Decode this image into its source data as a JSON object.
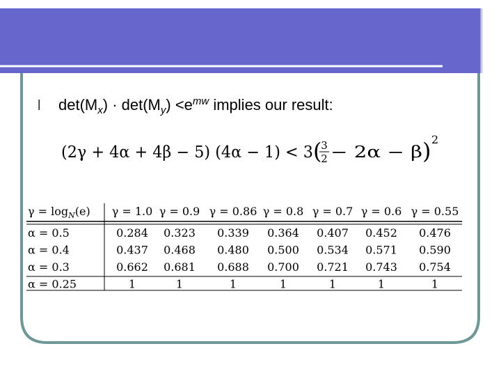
{
  "bullet": {
    "marker": "l",
    "parts": [
      "det(M",
      "x",
      ") · det(M",
      "y",
      ") <e",
      "mw",
      " implies our result:"
    ]
  },
  "formula": {
    "left": "(2γ + 4α + 4β − 5) (4α − 1) < 3 ",
    "frac_num": "3",
    "frac_den": "2",
    "right": " − 2α − β",
    "exponent": "2"
  },
  "table": {
    "header": [
      [
        "γ = log",
        "N",
        "(e)"
      ],
      [
        "γ = 1.0"
      ],
      [
        "γ = 0.9"
      ],
      [
        "γ = 0.86"
      ],
      [
        "γ = 0.8"
      ],
      [
        "γ = 0.7"
      ],
      [
        "γ = 0.6"
      ],
      [
        "γ = 0.55"
      ]
    ],
    "rows": [
      [
        "α = 0.5",
        "0.284",
        "0.323",
        "0.339",
        "0.364",
        "0.407",
        "0.452",
        "0.476"
      ],
      [
        "α = 0.4",
        "0.437",
        "0.468",
        "0.480",
        "0.500",
        "0.534",
        "0.571",
        "0.590"
      ],
      [
        "α = 0.3",
        "0.662",
        "0.681",
        "0.688",
        "0.700",
        "0.721",
        "0.743",
        "0.754"
      ],
      [
        "α = 0.25",
        "1",
        "1",
        "1",
        "1",
        "1",
        "1",
        "1"
      ]
    ]
  }
}
